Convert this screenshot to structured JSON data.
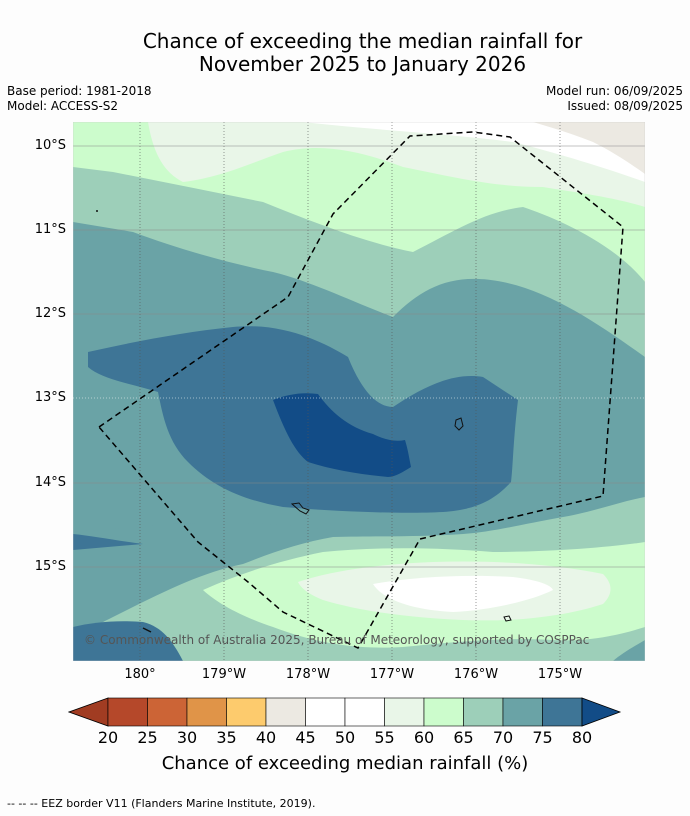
{
  "title_line1": "Chance of exceeding the median rainfall for",
  "title_line2": "November 2025 to January 2026",
  "meta": {
    "base_period": "Base period: 1981-2018",
    "model": "Model: ACCESS-S2",
    "model_run": "Model run: 06/09/2025",
    "issued": "Issued: 08/09/2025"
  },
  "axes": {
    "lat_labels": [
      "10°S",
      "11°S",
      "12°S",
      "13°S",
      "14°S",
      "15°S"
    ],
    "lon_labels": [
      "180°",
      "179°W",
      "178°W",
      "177°W",
      "176°W",
      "175°W"
    ]
  },
  "copyright": "© Commonwealth of Australia 2025, Bureau of Meteorology, supported by COSPPac",
  "colorbar": {
    "ticks": [
      "20",
      "25",
      "30",
      "35",
      "40",
      "45",
      "50",
      "55",
      "60",
      "65",
      "70",
      "75",
      "80"
    ],
    "colors": [
      "#a13c22",
      "#b5482a",
      "#cc6436",
      "#e09448",
      "#fdcb6d",
      "#ece9e2",
      "#ffffff",
      "#ffffff",
      "#e9f6e8",
      "#ccfccc",
      "#9dcfb9",
      "#6aa3a6",
      "#3e7596",
      "#124c87"
    ],
    "label": "Chance of exceeding median rainfall (%)"
  },
  "footnote": "--  --  -- EEZ border V11 (Flanders Marine Institute, 2019)."
}
